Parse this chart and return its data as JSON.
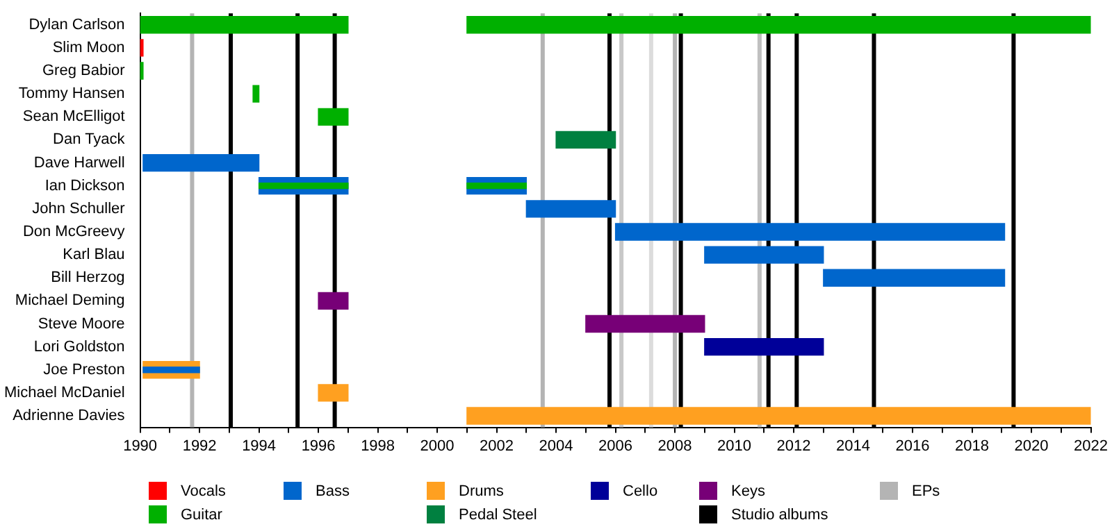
{
  "chart_data": {
    "type": "bar",
    "orientation": "horizontal",
    "categories": [
      "Dylan Carlson",
      "Slim Moon",
      "Greg Babior",
      "Tommy Hansen",
      "Sean McElligot",
      "Dan Tyack",
      "Dave Harwell",
      "Ian Dickson",
      "John Schuller",
      "Don McGreevy",
      "Karl Blau",
      "Bill Herzog",
      "Michael Deming",
      "Steve Moore",
      "Lori Goldston",
      "Joe Preston",
      "Michael McDaniel",
      "Adrienne Davies"
    ],
    "xlim": [
      1990,
      2022
    ],
    "xticks": [
      1990,
      {
        "value": 1991,
        "label": null
      },
      1992,
      {
        "value": 1993,
        "label": null
      },
      1994,
      {
        "value": 1995,
        "label": null
      },
      1996,
      {
        "value": 1997,
        "label": null
      },
      1998,
      {
        "value": 1999,
        "label": null
      },
      2000,
      {
        "value": 2001,
        "label": null
      },
      2002,
      {
        "value": 2003,
        "label": null
      },
      2004,
      {
        "value": 2005,
        "label": null
      },
      2006,
      {
        "value": 2007,
        "label": null
      },
      2008,
      {
        "value": 2009,
        "label": null
      },
      2010,
      {
        "value": 2011,
        "label": null
      },
      2012,
      {
        "value": 2013,
        "label": null
      },
      2014,
      {
        "value": 2015,
        "label": null
      },
      2016,
      {
        "value": 2017,
        "label": null
      },
      2018,
      {
        "value": 2019,
        "label": null
      },
      2020,
      {
        "value": 2021,
        "label": null
      },
      2022
    ],
    "legend": "bottom",
    "series": [
      {
        "name": "Vocals",
        "color": "#ff0000",
        "base": [
          null,
          1990,
          null,
          null,
          null,
          null,
          null,
          null,
          null,
          null,
          null,
          null,
          null,
          null,
          null,
          null,
          null,
          null
        ],
        "values": [
          null,
          0.1,
          null,
          null,
          null,
          null,
          null,
          null,
          null,
          null,
          null,
          null,
          null,
          null,
          null,
          null,
          null,
          null
        ]
      },
      {
        "name": "Guitar",
        "color": "#00b000",
        "base": [
          1990,
          null,
          1990,
          1993.8,
          1996,
          null,
          null,
          null,
          null,
          null,
          null,
          null,
          null,
          null,
          null,
          null,
          null,
          null
        ],
        "values": [
          7,
          null,
          0.1,
          0.2,
          1,
          null,
          null,
          null,
          null,
          null,
          null,
          null,
          null,
          null,
          null,
          null,
          null,
          null
        ]
      },
      {
        "name": "Bass",
        "color": "#0066cc",
        "base": [
          null,
          null,
          null,
          null,
          null,
          null,
          1990.1,
          1994,
          2003,
          2006,
          2009,
          2013,
          null,
          null,
          null,
          null,
          null,
          null
        ],
        "values": [
          null,
          null,
          null,
          null,
          null,
          null,
          3.9,
          3,
          3,
          13.1,
          4,
          6.1,
          null,
          null,
          null,
          null,
          null,
          null
        ]
      },
      {
        "name": "Drums",
        "color": "#ffa020",
        "base": [
          null,
          null,
          null,
          null,
          null,
          null,
          null,
          null,
          null,
          null,
          null,
          null,
          null,
          null,
          null,
          1990.1,
          1996,
          2001
        ],
        "values": [
          null,
          null,
          null,
          null,
          null,
          null,
          null,
          null,
          null,
          null,
          null,
          null,
          null,
          null,
          null,
          1.9,
          1,
          21
        ]
      },
      {
        "name": "Pedal Steel",
        "color": "#008040",
        "base": [
          null,
          null,
          null,
          null,
          null,
          2004,
          null,
          null,
          null,
          null,
          null,
          null,
          null,
          null,
          null,
          null,
          null,
          null
        ],
        "values": [
          null,
          null,
          null,
          null,
          null,
          2,
          null,
          null,
          null,
          null,
          null,
          null,
          null,
          null,
          null,
          null,
          null,
          null
        ]
      },
      {
        "name": "Cello",
        "color": "#000099",
        "base": [
          null,
          null,
          null,
          null,
          null,
          null,
          null,
          null,
          null,
          null,
          null,
          null,
          null,
          null,
          2009,
          null,
          null,
          null
        ],
        "values": [
          null,
          null,
          null,
          null,
          null,
          null,
          null,
          null,
          null,
          null,
          null,
          null,
          null,
          null,
          4,
          null,
          null,
          null
        ]
      },
      {
        "name": "Keys",
        "color": "#770077",
        "base": [
          null,
          null,
          null,
          null,
          null,
          null,
          null,
          null,
          null,
          null,
          null,
          null,
          1996,
          2005,
          null,
          null,
          null,
          null
        ],
        "values": [
          null,
          null,
          null,
          null,
          null,
          null,
          null,
          null,
          null,
          null,
          null,
          null,
          1,
          4,
          null,
          null,
          null,
          null
        ]
      },
      {
        "color": "#00b000",
        "base": [
          2001,
          null,
          null,
          null,
          null,
          null,
          null,
          null,
          null,
          null,
          null,
          null,
          null,
          null,
          null,
          null,
          null,
          null
        ],
        "values": [
          21,
          null,
          null,
          null,
          null,
          null,
          null,
          null,
          null,
          null,
          null,
          null,
          null,
          null,
          null,
          null,
          null,
          null
        ]
      },
      {
        "color": "#0066cc",
        "base": [
          null,
          null,
          null,
          null,
          null,
          null,
          null,
          2001,
          null,
          null,
          null,
          null,
          null,
          null,
          null,
          null,
          null,
          null
        ],
        "values": [
          null,
          null,
          null,
          null,
          null,
          null,
          null,
          2,
          null,
          null,
          null,
          null,
          null,
          null,
          null,
          null,
          null,
          null
        ]
      },
      {
        "color": "#00b000",
        "base": [
          null,
          null,
          null,
          null,
          null,
          null,
          null,
          1994,
          null,
          null,
          null,
          null,
          null,
          null,
          null,
          null,
          null,
          null
        ],
        "values": [
          null,
          null,
          null,
          null,
          null,
          null,
          null,
          3,
          null,
          null,
          null,
          null,
          null,
          null,
          null,
          null,
          null,
          null
        ]
      },
      {
        "color": "#00b000",
        "base": [
          null,
          null,
          null,
          null,
          null,
          null,
          null,
          2001,
          null,
          null,
          null,
          null,
          null,
          null,
          null,
          null,
          null,
          null
        ],
        "values": [
          null,
          null,
          null,
          null,
          null,
          null,
          null,
          2,
          null,
          null,
          null,
          null,
          null,
          null,
          null,
          null,
          null,
          null
        ]
      },
      {
        "color": "#0066cc",
        "base": [
          null,
          null,
          null,
          null,
          null,
          null,
          null,
          null,
          null,
          null,
          null,
          null,
          null,
          null,
          null,
          1990.1,
          null,
          null
        ],
        "values": [
          null,
          null,
          null,
          null,
          null,
          null,
          null,
          null,
          null,
          null,
          null,
          null,
          null,
          null,
          null,
          1.9,
          null,
          null
        ]
      }
    ],
    "ref_lines": [
      {
        "axis": "x",
        "value": 1993.05,
        "label": "Studio albums",
        "color": "#000000"
      },
      {
        "axis": "x",
        "value": 1995.3,
        "color": "#000000"
      },
      {
        "axis": "x",
        "value": 1996.55,
        "color": "#000000"
      },
      {
        "axis": "x",
        "value": 2005.8,
        "color": "#000000"
      },
      {
        "axis": "x",
        "value": 2008.2,
        "color": "#000000"
      },
      {
        "axis": "x",
        "value": 2011.15,
        "color": "#000000"
      },
      {
        "axis": "x",
        "value": 2012.1,
        "color": "#000000"
      },
      {
        "axis": "x",
        "value": 2014.7,
        "color": "#000000"
      },
      {
        "axis": "x",
        "value": 2019.4,
        "color": "#000000"
      },
      {
        "axis": "x",
        "value": 1991.75,
        "label": "EPs",
        "color": "#b4b4b4"
      },
      {
        "axis": "x",
        "value": 2003.55,
        "color": "#b4b4b4"
      },
      {
        "axis": "x",
        "value": 2006.2,
        "color": "#c8c8c8"
      },
      {
        "axis": "x",
        "value": 2007.2,
        "color": "#dcdcdc"
      },
      {
        "axis": "x",
        "value": 2008.0,
        "color": "#b4b4b4"
      },
      {
        "axis": "x",
        "value": 2010.85,
        "color": "#c0c0c0"
      }
    ]
  }
}
